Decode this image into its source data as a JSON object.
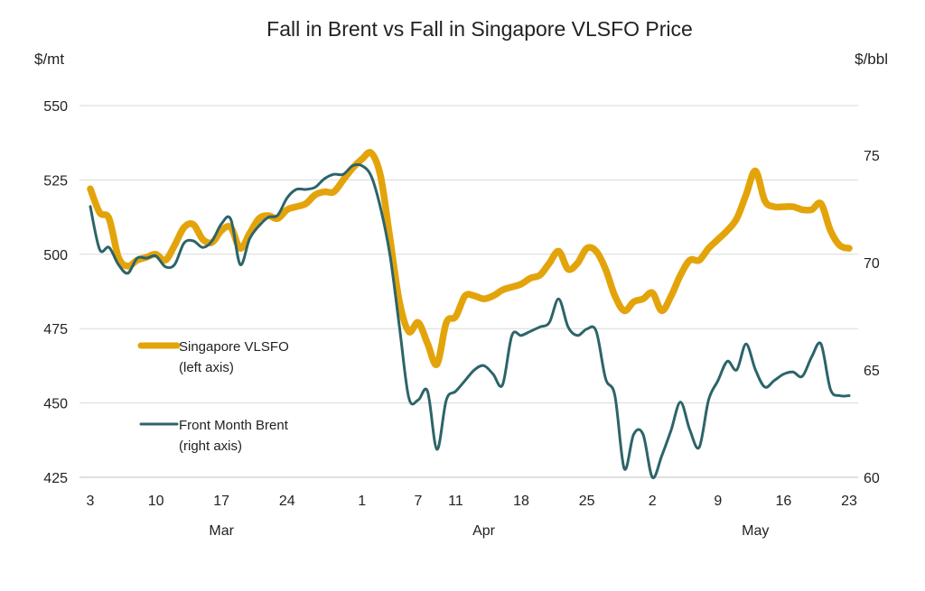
{
  "chart_data": {
    "type": "line",
    "title": "Fall in Brent vs Fall in Singapore VLSFO Price",
    "left_axis": {
      "unit_label": "$/mt",
      "range": [
        425,
        550
      ],
      "ticks": [
        425,
        450,
        475,
        500,
        525,
        550
      ]
    },
    "right_axis": {
      "unit_label": "$/bbl",
      "range": [
        60,
        77.3
      ],
      "ticks": [
        60,
        65,
        70,
        75
      ]
    },
    "x_axis": {
      "ticks": [
        {
          "label": "3",
          "date": "2025-03-03"
        },
        {
          "label": "10",
          "date": "2025-03-10"
        },
        {
          "label": "17",
          "date": "2025-03-17"
        },
        {
          "label": "24",
          "date": "2025-03-24"
        },
        {
          "label": "1",
          "date": "2025-04-01"
        },
        {
          "label": "7",
          "date": "2025-04-07"
        },
        {
          "label": "11",
          "date": "2025-04-11"
        },
        {
          "label": "18",
          "date": "2025-04-18"
        },
        {
          "label": "25",
          "date": "2025-04-25"
        },
        {
          "label": "2",
          "date": "2025-05-02"
        },
        {
          "label": "9",
          "date": "2025-05-09"
        },
        {
          "label": "16",
          "date": "2025-05-16"
        },
        {
          "label": "23",
          "date": "2025-05-23"
        }
      ],
      "months": [
        {
          "label": "Mar",
          "date": "2025-03-17"
        },
        {
          "label": "Apr",
          "date": "2025-04-14"
        },
        {
          "label": "May",
          "date": "2025-05-13"
        }
      ]
    },
    "grid": "horizontal",
    "legend_position": "center-left",
    "series": [
      {
        "name": "Singapore VLSFO",
        "legend_line2": "(left axis)",
        "axis": "left",
        "color": "#E3A40B",
        "points": [
          [
            "2025-03-03",
            522
          ],
          [
            "2025-03-04",
            514
          ],
          [
            "2025-03-05",
            512
          ],
          [
            "2025-03-06",
            499
          ],
          [
            "2025-03-07",
            496
          ],
          [
            "2025-03-08",
            498
          ],
          [
            "2025-03-09",
            499
          ],
          [
            "2025-03-10",
            500
          ],
          [
            "2025-03-11",
            498
          ],
          [
            "2025-03-12",
            503
          ],
          [
            "2025-03-13",
            509
          ],
          [
            "2025-03-14",
            510
          ],
          [
            "2025-03-15",
            505
          ],
          [
            "2025-03-16",
            504
          ],
          [
            "2025-03-17",
            508
          ],
          [
            "2025-03-18",
            509
          ],
          [
            "2025-03-19",
            502
          ],
          [
            "2025-03-20",
            507
          ],
          [
            "2025-03-21",
            512
          ],
          [
            "2025-03-22",
            513
          ],
          [
            "2025-03-23",
            512
          ],
          [
            "2025-03-24",
            515
          ],
          [
            "2025-03-25",
            516
          ],
          [
            "2025-03-26",
            517
          ],
          [
            "2025-03-27",
            520
          ],
          [
            "2025-03-28",
            521
          ],
          [
            "2025-03-29",
            521
          ],
          [
            "2025-03-30",
            525
          ],
          [
            "2025-03-31",
            529
          ],
          [
            "2025-04-01",
            532
          ],
          [
            "2025-04-02",
            534
          ],
          [
            "2025-04-03",
            526
          ],
          [
            "2025-04-04",
            505
          ],
          [
            "2025-04-05",
            484
          ],
          [
            "2025-04-06",
            474
          ],
          [
            "2025-04-07",
            477
          ],
          [
            "2025-04-08",
            470
          ],
          [
            "2025-04-09",
            463
          ],
          [
            "2025-04-10",
            477
          ],
          [
            "2025-04-11",
            479
          ],
          [
            "2025-04-12",
            486
          ],
          [
            "2025-04-13",
            486
          ],
          [
            "2025-04-14",
            485
          ],
          [
            "2025-04-15",
            486
          ],
          [
            "2025-04-16",
            488
          ],
          [
            "2025-04-17",
            489
          ],
          [
            "2025-04-18",
            490
          ],
          [
            "2025-04-19",
            492
          ],
          [
            "2025-04-20",
            493
          ],
          [
            "2025-04-21",
            497
          ],
          [
            "2025-04-22",
            501
          ],
          [
            "2025-04-23",
            495
          ],
          [
            "2025-04-24",
            497
          ],
          [
            "2025-04-25",
            502
          ],
          [
            "2025-04-26",
            501
          ],
          [
            "2025-04-27",
            495
          ],
          [
            "2025-04-28",
            486
          ],
          [
            "2025-04-29",
            481
          ],
          [
            "2025-04-30",
            484
          ],
          [
            "2025-05-01",
            485
          ],
          [
            "2025-05-02",
            487
          ],
          [
            "2025-05-03",
            481
          ],
          [
            "2025-05-04",
            486
          ],
          [
            "2025-05-05",
            493
          ],
          [
            "2025-05-06",
            498
          ],
          [
            "2025-05-07",
            498
          ],
          [
            "2025-05-08",
            502
          ],
          [
            "2025-05-09",
            505
          ],
          [
            "2025-05-10",
            508
          ],
          [
            "2025-05-11",
            512
          ],
          [
            "2025-05-12",
            520
          ],
          [
            "2025-05-13",
            528
          ],
          [
            "2025-05-14",
            518
          ],
          [
            "2025-05-15",
            516
          ],
          [
            "2025-05-16",
            516
          ],
          [
            "2025-05-17",
            516
          ],
          [
            "2025-05-18",
            515
          ],
          [
            "2025-05-19",
            515
          ],
          [
            "2025-05-20",
            517
          ],
          [
            "2025-05-21",
            508
          ],
          [
            "2025-05-22",
            503
          ],
          [
            "2025-05-23",
            502
          ]
        ]
      },
      {
        "name": "Front Month Brent",
        "legend_line2": "(right axis)",
        "axis": "right",
        "color": "#2C6469",
        "points": [
          [
            "2025-03-03",
            72.6
          ],
          [
            "2025-03-04",
            70.6
          ],
          [
            "2025-03-05",
            70.7
          ],
          [
            "2025-03-06",
            69.9
          ],
          [
            "2025-03-07",
            69.5
          ],
          [
            "2025-03-08",
            70.2
          ],
          [
            "2025-03-09",
            70.2
          ],
          [
            "2025-03-10",
            70.3
          ],
          [
            "2025-03-11",
            69.8
          ],
          [
            "2025-03-12",
            69.9
          ],
          [
            "2025-03-13",
            70.9
          ],
          [
            "2025-03-14",
            71.0
          ],
          [
            "2025-03-15",
            70.7
          ],
          [
            "2025-03-16",
            71.0
          ],
          [
            "2025-03-17",
            71.8
          ],
          [
            "2025-03-18",
            72.0
          ],
          [
            "2025-03-19",
            69.9
          ],
          [
            "2025-03-20",
            71.1
          ],
          [
            "2025-03-21",
            71.7
          ],
          [
            "2025-03-22",
            72.1
          ],
          [
            "2025-03-23",
            72.2
          ],
          [
            "2025-03-24",
            73.0
          ],
          [
            "2025-03-25",
            73.4
          ],
          [
            "2025-03-26",
            73.4
          ],
          [
            "2025-03-27",
            73.5
          ],
          [
            "2025-03-28",
            73.9
          ],
          [
            "2025-03-29",
            74.1
          ],
          [
            "2025-03-30",
            74.1
          ],
          [
            "2025-03-31",
            74.5
          ],
          [
            "2025-04-01",
            74.5
          ],
          [
            "2025-04-02",
            74.0
          ],
          [
            "2025-04-03",
            72.5
          ],
          [
            "2025-04-04",
            70.3
          ],
          [
            "2025-04-05",
            67.0
          ],
          [
            "2025-04-06",
            63.7
          ],
          [
            "2025-04-07",
            63.6
          ],
          [
            "2025-04-08",
            64.0
          ],
          [
            "2025-04-09",
            61.3
          ],
          [
            "2025-04-10",
            63.6
          ],
          [
            "2025-04-11",
            64.0
          ],
          [
            "2025-04-12",
            64.5
          ],
          [
            "2025-04-13",
            65.0
          ],
          [
            "2025-04-14",
            65.2
          ],
          [
            "2025-04-15",
            64.8
          ],
          [
            "2025-04-16",
            64.3
          ],
          [
            "2025-04-17",
            66.6
          ],
          [
            "2025-04-18",
            66.6
          ],
          [
            "2025-04-19",
            66.8
          ],
          [
            "2025-04-20",
            67.0
          ],
          [
            "2025-04-21",
            67.2
          ],
          [
            "2025-04-22",
            68.3
          ],
          [
            "2025-04-23",
            67.0
          ],
          [
            "2025-04-24",
            66.6
          ],
          [
            "2025-04-25",
            66.9
          ],
          [
            "2025-04-26",
            66.8
          ],
          [
            "2025-04-27",
            64.6
          ],
          [
            "2025-04-28",
            63.8
          ],
          [
            "2025-04-29",
            60.4
          ],
          [
            "2025-04-30",
            62.0
          ],
          [
            "2025-05-01",
            62.0
          ],
          [
            "2025-05-02",
            60.0
          ],
          [
            "2025-05-03",
            61.0
          ],
          [
            "2025-05-04",
            62.2
          ],
          [
            "2025-05-05",
            63.5
          ],
          [
            "2025-05-06",
            62.2
          ],
          [
            "2025-05-07",
            61.4
          ],
          [
            "2025-05-08",
            63.6
          ],
          [
            "2025-05-09",
            64.5
          ],
          [
            "2025-05-10",
            65.4
          ],
          [
            "2025-05-11",
            65.0
          ],
          [
            "2025-05-12",
            66.2
          ],
          [
            "2025-05-13",
            65.0
          ],
          [
            "2025-05-14",
            64.2
          ],
          [
            "2025-05-15",
            64.5
          ],
          [
            "2025-05-16",
            64.8
          ],
          [
            "2025-05-17",
            64.9
          ],
          [
            "2025-05-18",
            64.7
          ],
          [
            "2025-05-19",
            65.6
          ],
          [
            "2025-05-20",
            66.2
          ],
          [
            "2025-05-21",
            64.1
          ],
          [
            "2025-05-22",
            63.8
          ],
          [
            "2025-05-23",
            63.8
          ]
        ]
      }
    ]
  }
}
